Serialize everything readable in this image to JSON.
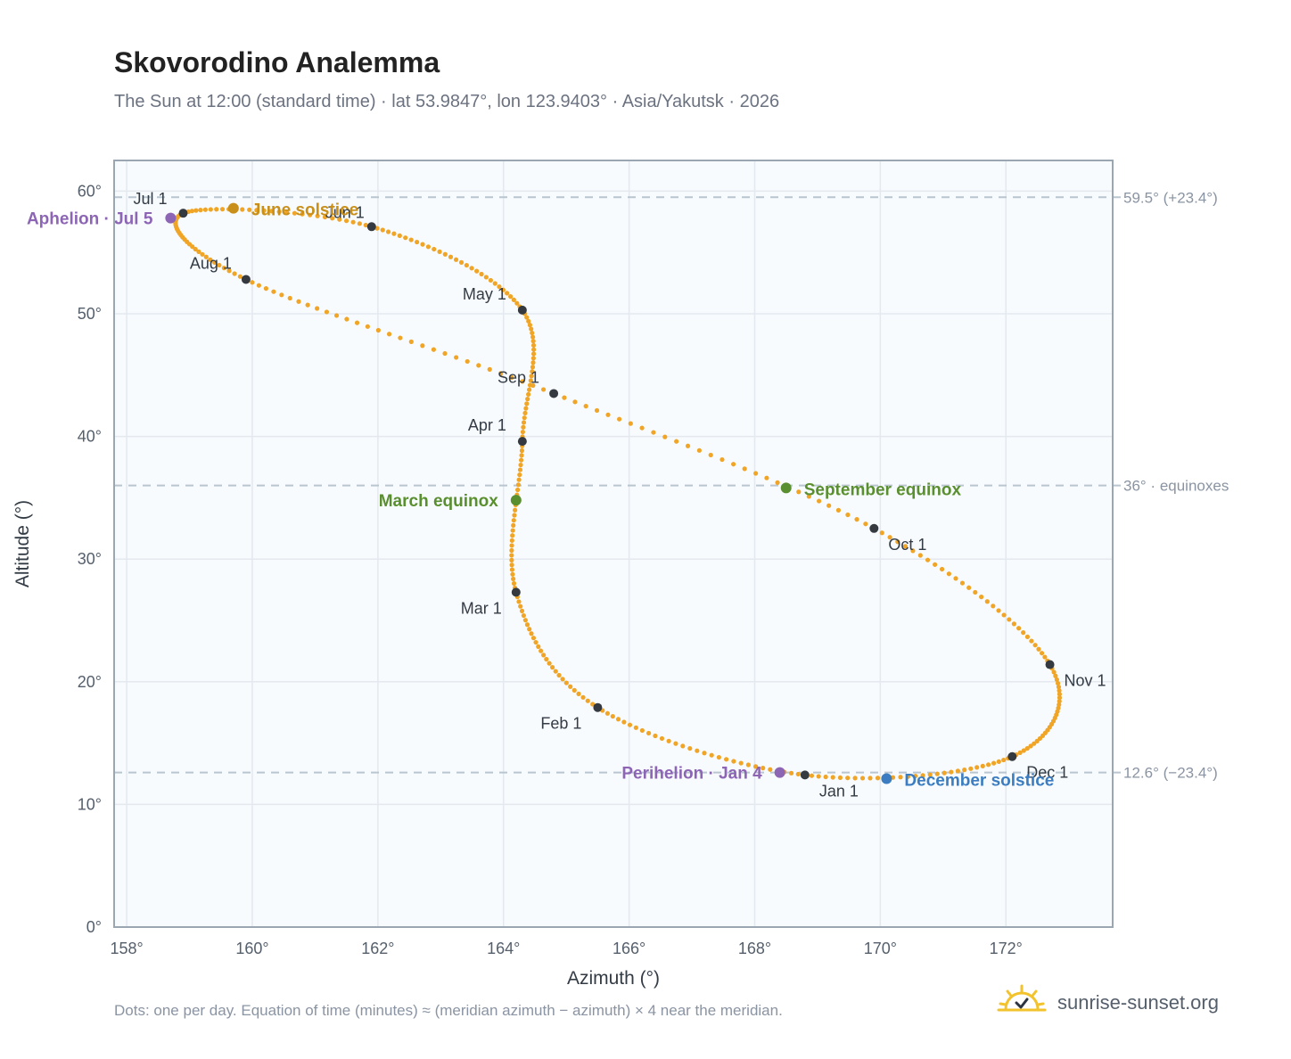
{
  "title": "Skovorodino Analemma",
  "subtitle": "The Sun at 12:00 (standard time) · lat 53.9847°, lon 123.9403° · Asia/Yakutsk · 2026",
  "footnote": "Dots: one per day. Equation of time (minutes) ≈ (meridian azimuth − azimuth) × 4 near the meridian.",
  "brand": {
    "name": "sunrise-sunset.org",
    "icon": "sun-logo-icon"
  },
  "colors": {
    "curve": "#f0a526",
    "month_marker": "#343a40",
    "equinox": "#5a8f2f",
    "june_solstice": "#c8901b",
    "december_solstice": "#3b7dc0",
    "aphelion_perihelion": "#8c65b5",
    "reference_line": "#b9c5cf",
    "plot_bg": "#f8fbfe"
  },
  "chart_data": {
    "type": "scatter",
    "title": "Skovorodino Analemma",
    "xlabel": "Azimuth (°)",
    "ylabel": "Altitude (°)",
    "xlim": [
      157.8,
      173.7
    ],
    "ylim": [
      0,
      62.5
    ],
    "xticks": [
      158,
      160,
      162,
      164,
      166,
      168,
      170,
      172
    ],
    "xtick_labels": [
      "158°",
      "160°",
      "162°",
      "164°",
      "166°",
      "168°",
      "170°",
      "172°"
    ],
    "yticks": [
      0,
      10,
      20,
      30,
      40,
      50,
      60
    ],
    "ytick_labels": [
      "0°",
      "10°",
      "20°",
      "30°",
      "40°",
      "50°",
      "60°"
    ],
    "grid": true,
    "month_markers": [
      {
        "label": "Jan 1",
        "az": 168.8,
        "alt": 12.4
      },
      {
        "label": "Feb 1",
        "az": 165.5,
        "alt": 17.9
      },
      {
        "label": "Mar 1",
        "az": 164.2,
        "alt": 27.3
      },
      {
        "label": "Apr 1",
        "az": 164.3,
        "alt": 39.6
      },
      {
        "label": "May 1",
        "az": 164.3,
        "alt": 50.3
      },
      {
        "label": "Jun 1",
        "az": 161.9,
        "alt": 57.1
      },
      {
        "label": "Jul 1",
        "az": 158.9,
        "alt": 58.2
      },
      {
        "label": "Aug 1",
        "az": 159.9,
        "alt": 52.8
      },
      {
        "label": "Sep 1",
        "az": 164.8,
        "alt": 43.5
      },
      {
        "label": "Oct 1",
        "az": 169.9,
        "alt": 32.5
      },
      {
        "label": "Nov 1",
        "az": 172.7,
        "alt": 21.4
      },
      {
        "label": "Dec 1",
        "az": 172.1,
        "alt": 13.9
      }
    ],
    "events": [
      {
        "label": "March equinox",
        "az": 164.2,
        "alt": 34.8,
        "kind": "equinox"
      },
      {
        "label": "June solstice",
        "az": 159.7,
        "alt": 58.6,
        "kind": "june_solstice"
      },
      {
        "label": "September equinox",
        "az": 168.5,
        "alt": 35.8,
        "kind": "equinox"
      },
      {
        "label": "December solstice",
        "az": 170.1,
        "alt": 12.1,
        "kind": "december_solstice"
      },
      {
        "label": "Aphelion · Jul 5",
        "az": 158.7,
        "alt": 57.8,
        "kind": "aphelion_perihelion"
      },
      {
        "label": "Perihelion · Jan 4",
        "az": 168.4,
        "alt": 12.6,
        "kind": "aphelion_perihelion"
      }
    ],
    "reference_lines": [
      {
        "alt": 59.5,
        "label": "59.5° (+23.4°)"
      },
      {
        "alt": 36,
        "label": "36° · equinoxes"
      },
      {
        "alt": 12.6,
        "label": "12.6° (−23.4°)"
      }
    ]
  }
}
